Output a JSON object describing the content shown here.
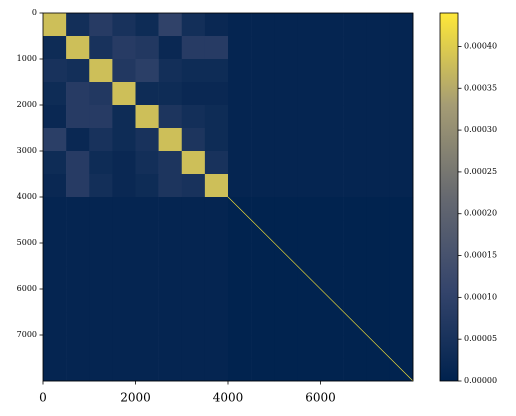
{
  "chart_data": {
    "type": "heatmap",
    "colormap": "cividis",
    "x_edges": [
      0,
      500,
      1000,
      1500,
      2000,
      2500,
      3000,
      3500,
      4000,
      4500,
      5000,
      5500,
      6000,
      6500,
      7000,
      7500,
      8000
    ],
    "y_edges": [
      0,
      500,
      1000,
      1500,
      2000,
      2500,
      3000,
      3500,
      4000,
      4500,
      5000,
      5500,
      6000,
      6500,
      7000,
      7500,
      8000
    ],
    "z": [
      [
        0.00038,
        4e-05,
        8e-05,
        5e-05,
        3e-05,
        0.0001,
        4e-05,
        2e-05,
        1e-05,
        1e-05,
        1e-05,
        1e-05,
        1e-05,
        1e-05,
        1e-05,
        1e-05
      ],
      [
        3e-05,
        0.00038,
        5e-05,
        8e-05,
        7e-05,
        2e-05,
        8e-05,
        8e-05,
        1e-05,
        1e-05,
        1e-05,
        1e-05,
        1e-05,
        1e-05,
        1e-05,
        1e-05
      ],
      [
        5e-05,
        4e-05,
        0.00038,
        7e-05,
        9e-05,
        4e-05,
        3e-05,
        3e-05,
        1e-05,
        1e-05,
        1e-05,
        1e-05,
        1e-05,
        1e-05,
        1e-05,
        1e-05
      ],
      [
        3e-05,
        8e-05,
        7e-05,
        0.00038,
        3e-05,
        3e-05,
        2e-05,
        2e-05,
        1e-05,
        1e-05,
        1e-05,
        1e-05,
        1e-05,
        1e-05,
        1e-05,
        1e-05
      ],
      [
        2e-05,
        8e-05,
        8e-05,
        3e-05,
        0.00038,
        6e-05,
        4e-05,
        3e-05,
        1e-05,
        1e-05,
        1e-05,
        1e-05,
        1e-05,
        1e-05,
        1e-05,
        1e-05
      ],
      [
        9e-05,
        2e-05,
        5e-05,
        3e-05,
        5e-05,
        0.00038,
        6e-05,
        3e-05,
        1e-05,
        1e-05,
        1e-05,
        1e-05,
        1e-05,
        1e-05,
        1e-05,
        1e-05
      ],
      [
        3e-05,
        8e-05,
        3e-05,
        2e-05,
        4e-05,
        6e-05,
        0.00038,
        5e-05,
        1e-05,
        1e-05,
        1e-05,
        1e-05,
        1e-05,
        1e-05,
        1e-05,
        1e-05
      ],
      [
        2e-05,
        8e-05,
        4e-05,
        2e-05,
        3e-05,
        6e-05,
        5e-05,
        0.00038,
        1e-05,
        1e-05,
        1e-05,
        1e-05,
        1e-05,
        1e-05,
        1e-05,
        1e-05
      ],
      [
        1e-05,
        1e-05,
        1e-05,
        1e-05,
        1e-05,
        1e-05,
        1e-05,
        1e-05,
        3e-06,
        3e-06,
        3e-06,
        3e-06,
        3e-06,
        3e-06,
        3e-06,
        3e-06
      ],
      [
        1e-05,
        1e-05,
        1e-05,
        1e-05,
        1e-05,
        1e-05,
        1e-05,
        1e-05,
        3e-06,
        3e-06,
        3e-06,
        3e-06,
        3e-06,
        3e-06,
        3e-06,
        3e-06
      ],
      [
        1e-05,
        1e-05,
        1e-05,
        1e-05,
        1e-05,
        1e-05,
        1e-05,
        1e-05,
        3e-06,
        3e-06,
        3e-06,
        3e-06,
        3e-06,
        3e-06,
        3e-06,
        3e-06
      ],
      [
        1e-05,
        1e-05,
        1e-05,
        1e-05,
        1e-05,
        1e-05,
        1e-05,
        1e-05,
        3e-06,
        3e-06,
        3e-06,
        3e-06,
        3e-06,
        3e-06,
        3e-06,
        3e-06
      ],
      [
        1e-05,
        1e-05,
        1e-05,
        1e-05,
        1e-05,
        1e-05,
        1e-05,
        1e-05,
        3e-06,
        3e-06,
        3e-06,
        3e-06,
        3e-06,
        3e-06,
        3e-06,
        3e-06
      ],
      [
        1e-05,
        1e-05,
        1e-05,
        1e-05,
        1e-05,
        1e-05,
        1e-05,
        1e-05,
        3e-06,
        3e-06,
        3e-06,
        3e-06,
        3e-06,
        3e-06,
        3e-06,
        3e-06
      ],
      [
        1e-05,
        1e-05,
        1e-05,
        1e-05,
        1e-05,
        1e-05,
        1e-05,
        1e-05,
        3e-06,
        3e-06,
        3e-06,
        3e-06,
        3e-06,
        3e-06,
        3e-06,
        3e-06
      ],
      [
        1e-05,
        1e-05,
        1e-05,
        1e-05,
        1e-05,
        1e-05,
        1e-05,
        1e-05,
        3e-06,
        3e-06,
        3e-06,
        3e-06,
        3e-06,
        3e-06,
        3e-06,
        3e-06
      ]
    ],
    "line": {
      "x": [
        4000,
        8000
      ],
      "y": [
        4000,
        8000
      ],
      "color": "#fee838"
    },
    "xlim": [
      0,
      8000
    ],
    "ylim": [
      8000,
      0
    ],
    "xticks": [
      0,
      2000,
      4000,
      6000
    ],
    "yticks": [
      0,
      1000,
      2000,
      3000,
      4000,
      5000,
      6000,
      7000
    ],
    "clim": [
      0,
      0.00044
    ],
    "cticks": [
      {
        "value": 0,
        "label": "0.00000"
      },
      {
        "value": 5e-05,
        "label": "0.00005"
      },
      {
        "value": 0.0001,
        "label": "0.00010"
      },
      {
        "value": 0.00015,
        "label": "0.00015"
      },
      {
        "value": 0.0002,
        "label": "0.00020"
      },
      {
        "value": 0.00025,
        "label": "0.00025"
      },
      {
        "value": 0.0003,
        "label": "0.00030"
      },
      {
        "value": 0.00035,
        "label": "0.00035"
      },
      {
        "value": 0.0004,
        "label": "0.00040"
      }
    ]
  }
}
